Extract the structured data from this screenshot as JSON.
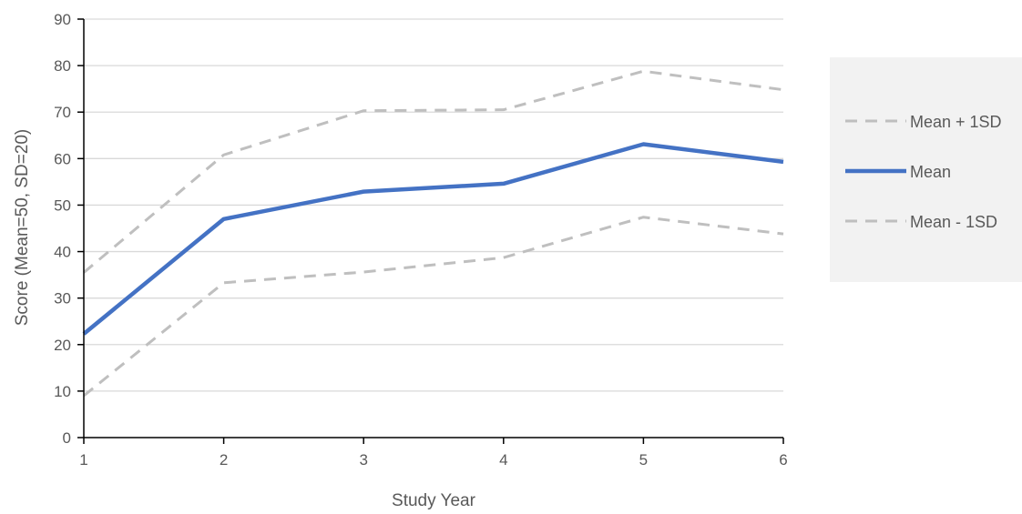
{
  "chart_data": {
    "type": "line",
    "title": "",
    "xlabel": "Study Year",
    "ylabel": "Score (Mean=50, SD=20)",
    "x": [
      1,
      2,
      3,
      4,
      5,
      6
    ],
    "xlim": [
      1,
      6
    ],
    "ylim": [
      0,
      90
    ],
    "yticks": [
      0,
      10,
      20,
      30,
      40,
      50,
      60,
      70,
      80,
      90
    ],
    "grid": true,
    "legend_placement": "right",
    "series": [
      {
        "name": "Mean + 1SD",
        "values": [
          35.5,
          60.8,
          70.3,
          70.5,
          78.8,
          74.8
        ],
        "color": "#BFBFBF",
        "style": "dashed"
      },
      {
        "name": "Mean",
        "values": [
          22.3,
          47.0,
          52.9,
          54.6,
          63.1,
          59.3
        ],
        "color": "#4472C4",
        "style": "solid"
      },
      {
        "name": "Mean - 1SD",
        "values": [
          9.0,
          33.3,
          35.6,
          38.7,
          47.4,
          43.8
        ],
        "color": "#BFBFBF",
        "style": "dashed"
      }
    ],
    "colors": {
      "grid": "#D9D9D9",
      "axis": "#000000",
      "text": "#595959",
      "legend_background": "#F2F2F2"
    }
  }
}
